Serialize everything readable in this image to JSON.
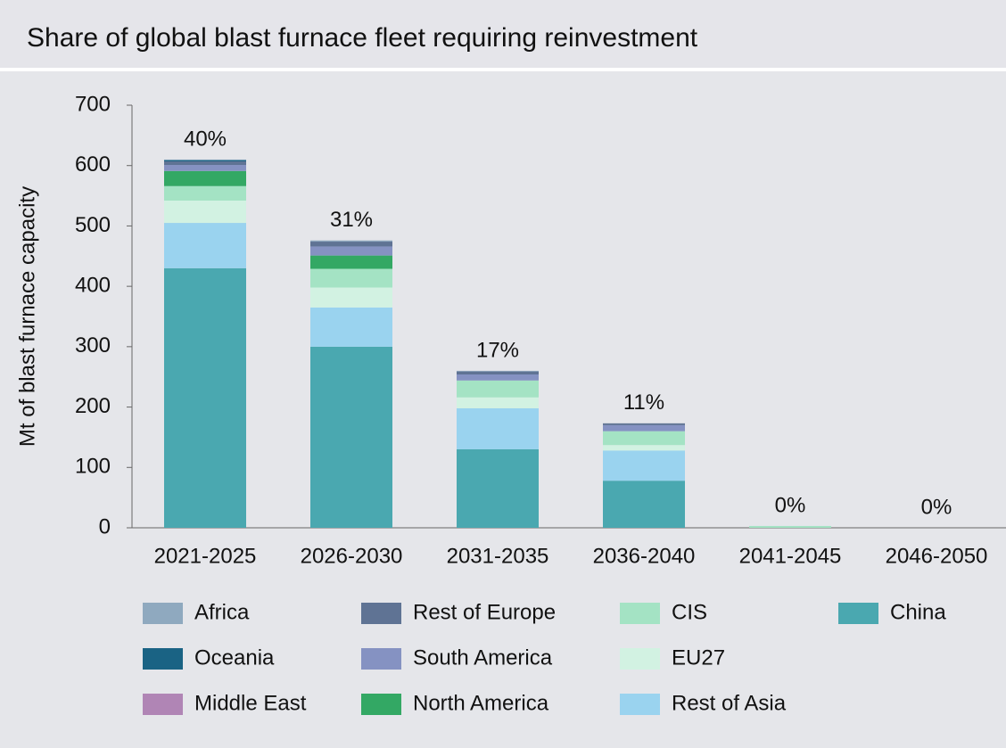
{
  "chart_data": {
    "type": "stacked_bar",
    "title": "Share of global blast furnace fleet requiring reinvestment",
    "y_label": "Mt of blast furnace capacity",
    "categories": [
      "2021-2025",
      "2026-2030",
      "2031-2035",
      "2036-2040",
      "2041-2045",
      "2046-2050"
    ],
    "annotations": [
      "40%",
      "31%",
      "17%",
      "11%",
      "0%",
      "0%"
    ],
    "ylim": [
      0,
      700
    ],
    "yticks": [
      0,
      100,
      200,
      300,
      400,
      500,
      600,
      700
    ],
    "series": [
      {
        "name": "China",
        "color": "#4aa8b0",
        "values": [
          430,
          300,
          130,
          78,
          0,
          0
        ]
      },
      {
        "name": "Rest of Asia",
        "color": "#9ad3ef",
        "values": [
          75,
          65,
          68,
          50,
          0,
          0
        ]
      },
      {
        "name": "EU27",
        "color": "#d2f2e2",
        "values": [
          37,
          33,
          18,
          9,
          0,
          0
        ]
      },
      {
        "name": "CIS",
        "color": "#a4e3c4",
        "values": [
          24,
          31,
          28,
          23,
          3,
          0
        ]
      },
      {
        "name": "North America",
        "color": "#33a864",
        "values": [
          25,
          22,
          0,
          0,
          0,
          0
        ]
      },
      {
        "name": "South America",
        "color": "#8592c2",
        "values": [
          10,
          15,
          10,
          10,
          0,
          0
        ]
      },
      {
        "name": "Rest of Europe",
        "color": "#5f7394",
        "values": [
          6,
          8,
          5,
          3,
          0,
          0
        ]
      },
      {
        "name": "Middle East",
        "color": "#b085b5",
        "values": [
          0,
          0,
          0,
          0,
          0,
          0
        ]
      },
      {
        "name": "Oceania",
        "color": "#1a6384",
        "values": [
          2,
          0,
          0,
          0,
          0,
          0
        ]
      },
      {
        "name": "Africa",
        "color": "#8fa9bf",
        "values": [
          1,
          2,
          1,
          0,
          0,
          0
        ]
      }
    ]
  }
}
